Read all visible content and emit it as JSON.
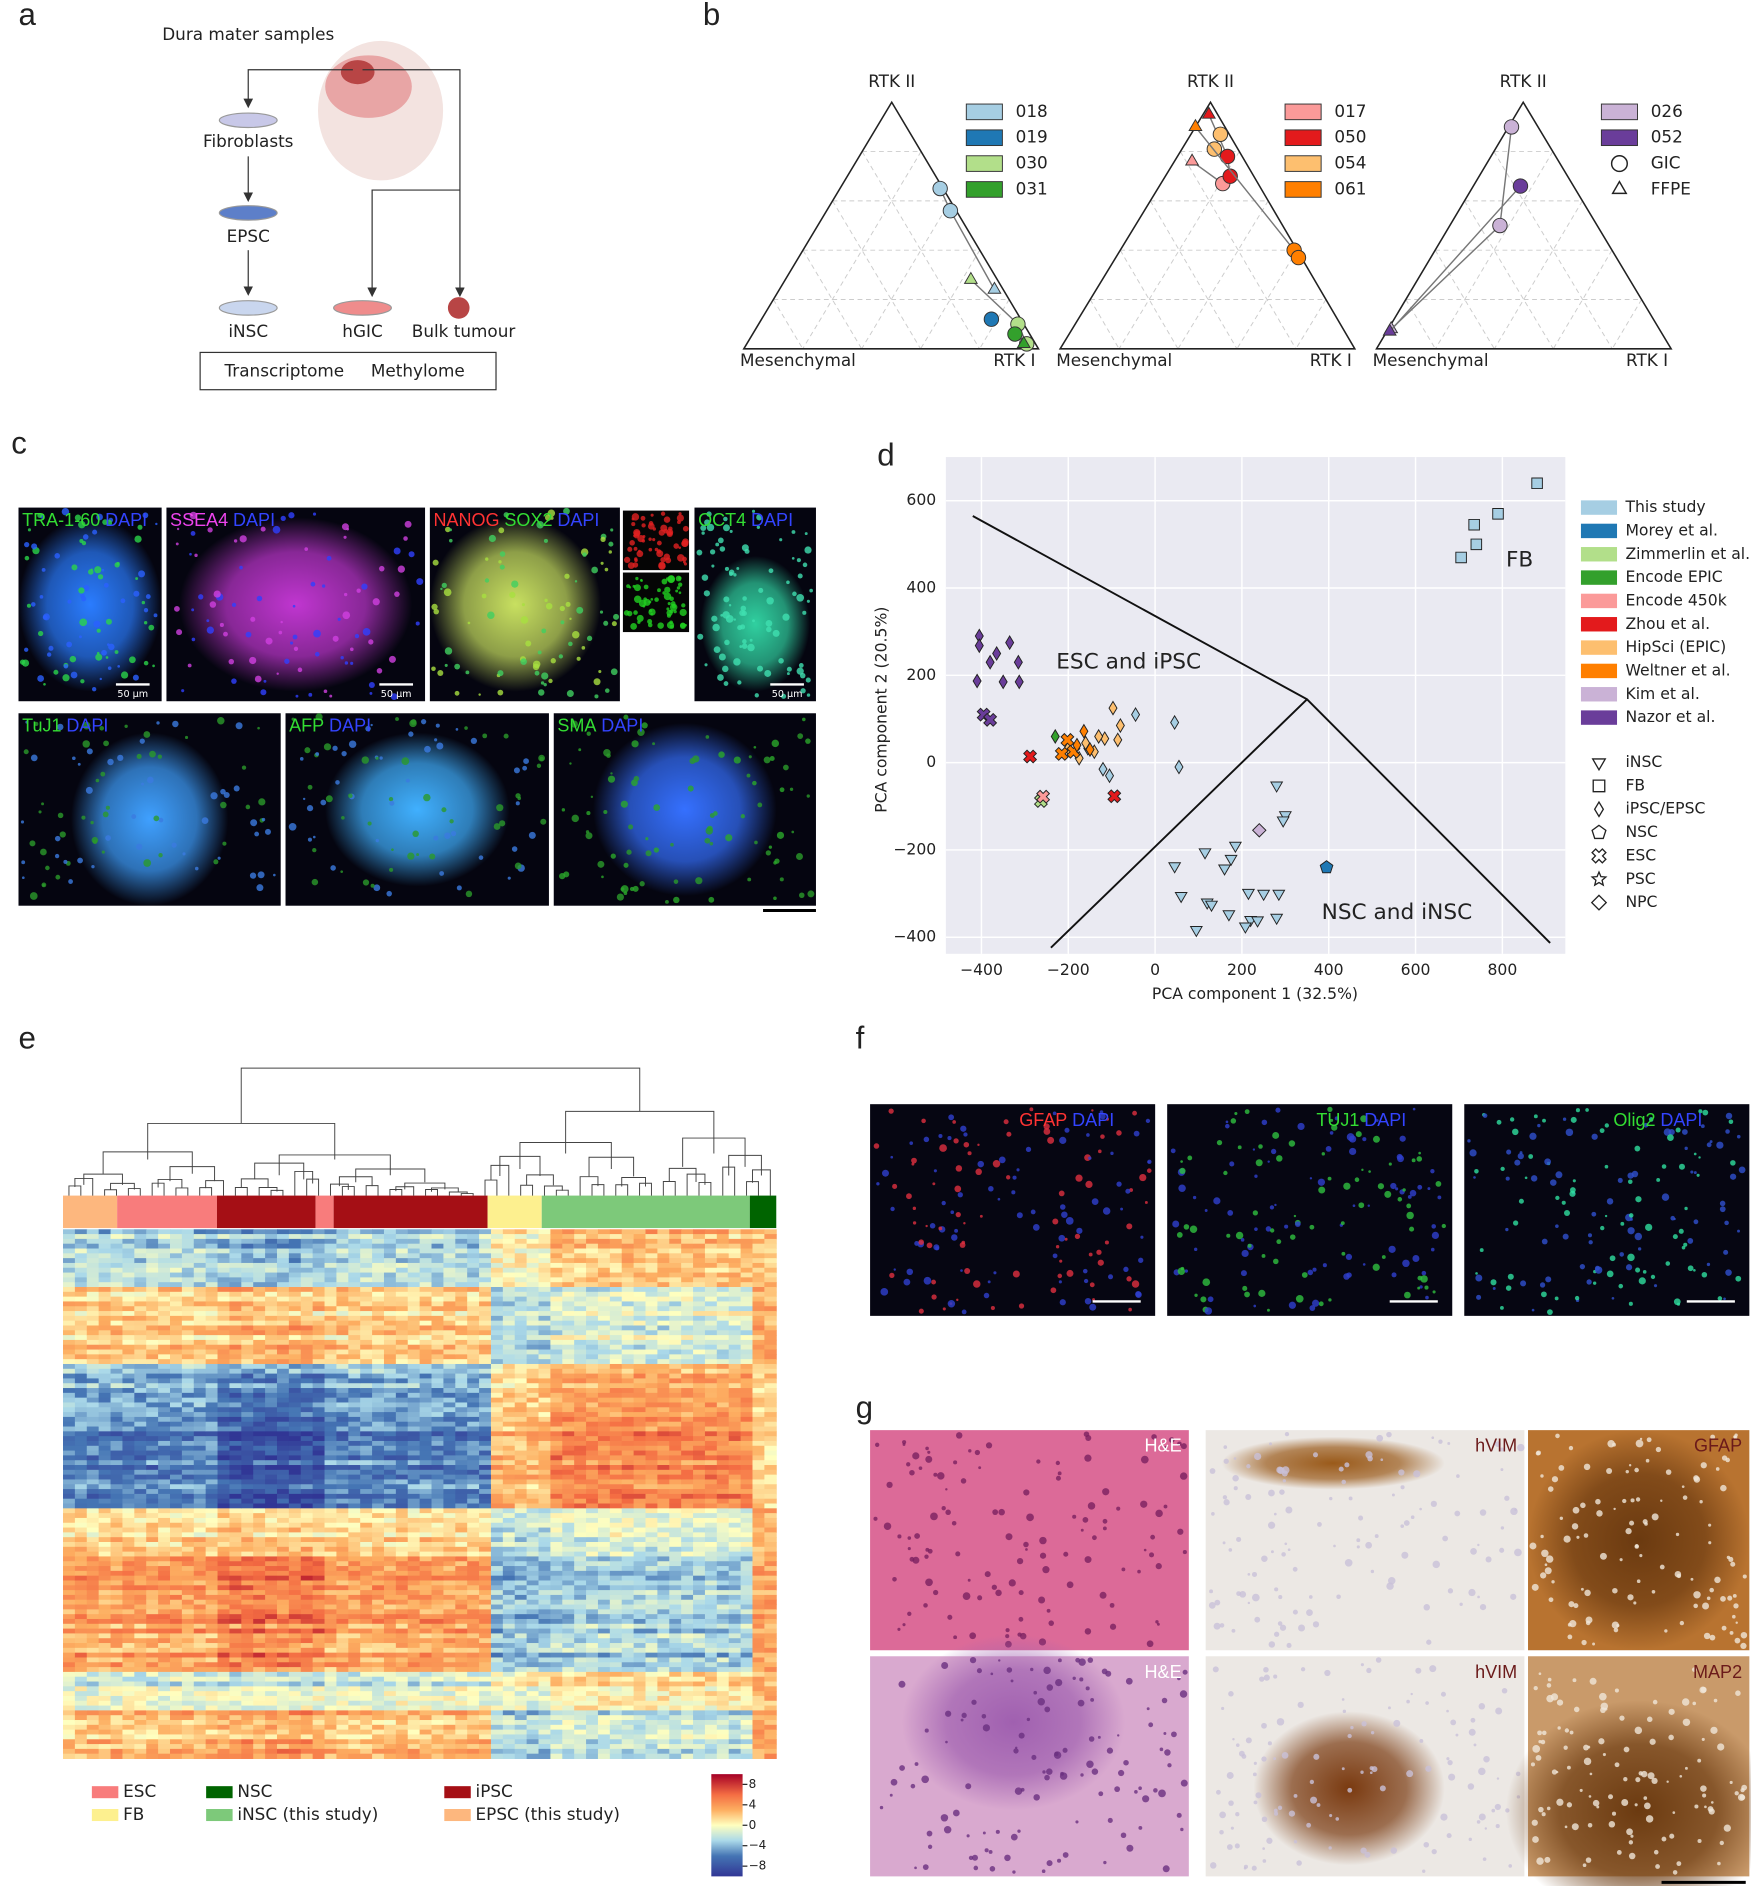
{
  "panel_labels": [
    "a",
    "b",
    "c",
    "d",
    "e",
    "f",
    "g"
  ],
  "schematic": {
    "samples": "Dura mater samples",
    "fibroblasts": "Fibroblasts",
    "epsc": "EPSC",
    "insc": "iNSC",
    "hgic": "hGIC",
    "bulk": "Bulk tumour",
    "assays": [
      "Transcriptome",
      "Methylome"
    ]
  },
  "chart_data": [
    {
      "type": "ternary",
      "corners": [
        "RTK II",
        "Mesenchymal",
        "RTK I"
      ],
      "series": [
        {
          "name": "018",
          "color": "#a6cee3",
          "values": [
            [
              0.65,
              0.01,
              0.34
            ],
            [
              0.56,
              0.02,
              0.42
            ],
            [
              0.24,
              0.03,
              0.73
            ]
          ],
          "markers": [
            "circle",
            "circle",
            "triangle"
          ]
        },
        {
          "name": "019",
          "color": "#1f78b4",
          "values": [
            [
              0.12,
              0.1,
              0.78
            ]
          ],
          "markers": [
            "circle"
          ]
        },
        {
          "name": "030",
          "color": "#b2df8a",
          "values": [
            [
              0.28,
              0.09,
              0.63
            ],
            [
              0.1,
              0.02,
              0.88
            ],
            [
              0.02,
              0.03,
              0.95
            ]
          ],
          "markers": [
            "triangle",
            "circle",
            "circle"
          ]
        },
        {
          "name": "031",
          "color": "#33a02c",
          "values": [
            [
              0.06,
              0.05,
              0.89
            ],
            [
              0.02,
              0.04,
              0.94
            ]
          ],
          "markers": [
            "circle",
            "triangle"
          ]
        }
      ]
    },
    {
      "type": "ternary",
      "corners": [
        "RTK II",
        "Mesenchymal",
        "RTK I"
      ],
      "series": [
        {
          "name": "017",
          "color": "#fb9a99",
          "values": [
            [
              0.76,
              0.18,
              0.06
            ],
            [
              0.67,
              0.12,
              0.21
            ]
          ],
          "markers": [
            "triangle",
            "circle"
          ]
        },
        {
          "name": "050",
          "color": "#e31a1c",
          "values": [
            [
              0.95,
              0.03,
              0.02
            ],
            [
              0.78,
              0.05,
              0.17
            ],
            [
              0.7,
              0.08,
              0.22
            ]
          ],
          "markers": [
            "triangle",
            "circle",
            "circle"
          ]
        },
        {
          "name": "054",
          "color": "#fdbf6f",
          "values": [
            [
              0.87,
              0.03,
              0.1
            ],
            [
              0.81,
              0.08,
              0.11
            ]
          ],
          "markers": [
            "circle",
            "circle"
          ]
        },
        {
          "name": "061",
          "color": "#ff7f00",
          "values": [
            [
              0.9,
              0.1,
              0
            ],
            [
              0.4,
              0.01,
              0.59
            ],
            [
              0.37,
              0.01,
              0.62
            ]
          ],
          "markers": [
            "triangle",
            "circle",
            "circle"
          ]
        }
      ]
    },
    {
      "type": "ternary",
      "corners": [
        "RTK II",
        "Mesenchymal",
        "RTK I"
      ],
      "series": [
        {
          "name": "026",
          "color": "#cab2d6",
          "values": [
            [
              0.9,
              0.09,
              0.01
            ],
            [
              0.5,
              0.33,
              0.17
            ],
            [
              0.08,
              0.91,
              0.01
            ]
          ],
          "markers": [
            "circle",
            "circle",
            "triangle"
          ]
        },
        {
          "name": "052",
          "color": "#6a3d9a",
          "values": [
            [
              0.66,
              0.18,
              0.16
            ],
            [
              0.07,
              0.92,
              0.01
            ]
          ],
          "markers": [
            "circle",
            "triangle"
          ]
        }
      ],
      "marker_legend": [
        {
          "label": "GIC",
          "marker": "circle"
        },
        {
          "label": "FFPE",
          "marker": "triangle"
        }
      ]
    },
    {
      "type": "scatter",
      "xlabel": "PCA component 1 (32.5%)",
      "ylabel": "PCA component 2 (20.5%)",
      "xlim": [
        -482,
        945
      ],
      "ylim": [
        -438,
        700
      ],
      "xticks": [
        {
          "value": -400,
          "label": "−400"
        },
        {
          "value": -200,
          "label": "−200"
        },
        0,
        200,
        400,
        600,
        800
      ],
      "yticks": [
        {
          "value": -400,
          "label": "−400"
        },
        {
          "value": -200,
          "label": "−200"
        },
        0,
        200,
        400,
        600
      ],
      "grid": true,
      "series": [
        {
          "name": "This study",
          "color": "#a6cee3",
          "x": [
            880,
            790,
            735,
            740,
            705,
            280,
            300,
            295,
            45,
            115,
            175,
            185,
            160,
            60,
            120,
            130,
            170,
            215,
            250,
            285,
            220,
            208,
            236,
            95,
            280,
            -45,
            45,
            55,
            -155,
            -120,
            -105
          ],
          "values": [
            640,
            570,
            545,
            500,
            470,
            -52,
            -120,
            -132,
            -237,
            -205,
            -220,
            -190,
            -242,
            -305,
            -320,
            -325,
            -347,
            -298,
            -300,
            -300,
            -360,
            -375,
            -361,
            -383,
            -355,
            110,
            92,
            -10,
            33,
            -15,
            -30
          ],
          "markers": [
            "square",
            "square",
            "square",
            "square",
            "square",
            "triangle-down",
            "triangle-down",
            "triangle-down",
            "triangle-down",
            "triangle-down",
            "triangle-down",
            "triangle-down",
            "triangle-down",
            "triangle-down",
            "triangle-down",
            "triangle-down",
            "triangle-down",
            "triangle-down",
            "triangle-down",
            "triangle-down",
            "triangle-down",
            "triangle-down",
            "triangle-down",
            "triangle-down",
            "triangle-down",
            "thin-diamond",
            "thin-diamond",
            "thin-diamond",
            "thin-diamond",
            "thin-diamond",
            "thin-diamond"
          ]
        },
        {
          "name": "Morey et al.",
          "color": "#1f78b4",
          "x": [
            395
          ],
          "values": [
            -240
          ],
          "markers": [
            "pentagon"
          ]
        },
        {
          "name": "Zimmerlin et al.",
          "color": "#b2df8a",
          "x": [
            -263
          ],
          "values": [
            -88
          ],
          "markers": [
            "cross"
          ]
        },
        {
          "name": "Encode EPIC",
          "color": "#33a02c",
          "x": [
            -230
          ],
          "values": [
            60
          ],
          "markers": [
            "thin-diamond"
          ]
        },
        {
          "name": "Encode 450k",
          "color": "#fb9a99",
          "x": [
            -258
          ],
          "values": [
            -78
          ],
          "markers": [
            "cross"
          ]
        },
        {
          "name": "Zhou et al.",
          "color": "#e31a1c",
          "x": [
            -288,
            -94
          ],
          "values": [
            14,
            -77
          ],
          "markers": [
            "cross",
            "cross"
          ]
        },
        {
          "name": "HipSci (EPIC)",
          "color": "#fdbf6f",
          "x": [
            -97,
            -80,
            -116,
            -86,
            -200,
            -175,
            -140,
            -130,
            -160
          ],
          "values": [
            125,
            85,
            55,
            52,
            33,
            10,
            25,
            60,
            45
          ],
          "markers": [
            "thin-diamond",
            "thin-diamond",
            "thin-diamond",
            "thin-diamond",
            "thin-diamond",
            "thin-diamond",
            "thin-diamond",
            "thin-diamond",
            "thin-diamond"
          ]
        },
        {
          "name": "Weltner et al.",
          "color": "#ff7f00",
          "x": [
            -202,
            -188,
            -164,
            -215,
            -180,
            -150
          ],
          "values": [
            52,
            25,
            72,
            20,
            40,
            30
          ],
          "markers": [
            "cross",
            "cross",
            "thin-diamond",
            "cross",
            "thin-diamond",
            "thin-diamond"
          ]
        },
        {
          "name": "Kim et al.",
          "color": "#cab2d6",
          "x": [
            240
          ],
          "values": [
            -155
          ],
          "markers": [
            "diamond"
          ]
        },
        {
          "name": "Nazor et al.",
          "color": "#6a3d9a",
          "x": [
            -405,
            -405,
            -335,
            -380,
            -365,
            -410,
            -350,
            -315,
            -313,
            -395,
            -380
          ],
          "values": [
            290,
            268,
            275,
            230,
            250,
            187,
            185,
            230,
            185,
            110,
            98
          ],
          "markers": [
            "thin-diamond",
            "thin-diamond",
            "thin-diamond",
            "thin-diamond",
            "thin-diamond",
            "thin-diamond",
            "thin-diamond",
            "thin-diamond",
            "thin-diamond",
            "cross",
            "cross"
          ]
        }
      ],
      "marker_legend": [
        {
          "label": "iNSC",
          "marker": "triangle-down"
        },
        {
          "label": "FB",
          "marker": "square"
        },
        {
          "label": "iPSC/EPSC",
          "marker": "thin-diamond"
        },
        {
          "label": "NSC",
          "marker": "pentagon"
        },
        {
          "label": "ESC",
          "marker": "cross"
        },
        {
          "label": "PSC",
          "marker": "star"
        },
        {
          "label": "NPC",
          "marker": "diamond"
        }
      ],
      "regions": [
        "ESC and iPSC",
        "FB",
        "NSC and iNSC"
      ],
      "boundaries": [
        {
          "x": [
            -420,
            350,
            910
          ],
          "y": [
            565,
            145,
            -413
          ]
        },
        {
          "x": [
            350,
            -240
          ],
          "y": [
            145,
            -424
          ]
        }
      ]
    }
  ],
  "heatmap": {
    "legend": [
      {
        "name": "ESC",
        "color": "#f87c7c"
      },
      {
        "name": "FB",
        "color": "#fdf08f"
      },
      {
        "name": "NSC",
        "color": "#006400"
      },
      {
        "name": "iNSC (this study)",
        "color": "#7dc97a"
      },
      {
        "name": "iPSC",
        "color": "#a50f15"
      },
      {
        "name": "EPSC (this study)",
        "color": "#fdb77e"
      }
    ],
    "colorbar": {
      "range": [
        -10,
        10
      ],
      "ticks": [
        8,
        4,
        0,
        {
          "value": -4,
          "label": "−4"
        },
        {
          "value": -8,
          "label": "−8"
        }
      ]
    }
  },
  "micrographs": {
    "c": [
      {
        "parts": [
          {
            "text": "TRA-1-60",
            "color": "#33dd33"
          },
          {
            "text": "DAPI",
            "color": "#3344ff"
          }
        ],
        "scale_bar": "50 μm"
      },
      {
        "parts": [
          {
            "text": "SSEA4",
            "color": "#ee44ee"
          },
          {
            "text": "DAPI",
            "color": "#3344ff"
          }
        ],
        "scale_bar": "50 μm"
      },
      {
        "parts": [
          {
            "text": "NANOG",
            "color": "#ff3333"
          },
          {
            "text": "SOX2",
            "color": "#33dd33"
          },
          {
            "text": "DAPI",
            "color": "#3344ff"
          }
        ]
      },
      {
        "parts": [
          {
            "text": "OCT4",
            "color": "#33dd33"
          },
          {
            "text": "DAPI",
            "color": "#3344ff"
          }
        ],
        "scale_bar": "50 μm"
      },
      {
        "parts": [
          {
            "text": "TuJ1",
            "color": "#33dd33"
          },
          {
            "text": "DAPI",
            "color": "#3344ff"
          }
        ]
      },
      {
        "parts": [
          {
            "text": "AFP",
            "color": "#33dd33"
          },
          {
            "text": "DAPI",
            "color": "#3344ff"
          }
        ]
      },
      {
        "parts": [
          {
            "text": "SMA",
            "color": "#33dd33"
          },
          {
            "text": "DAPI",
            "color": "#3344ff"
          }
        ]
      }
    ],
    "f": [
      {
        "parts": [
          {
            "text": "GFAP",
            "color": "#ff3333"
          },
          {
            "text": "DAPI",
            "color": "#3344ff"
          }
        ]
      },
      {
        "parts": [
          {
            "text": "TUJ1",
            "color": "#33dd33"
          },
          {
            "text": "DAPI",
            "color": "#3344ff"
          }
        ]
      },
      {
        "parts": [
          {
            "text": "Olig2",
            "color": "#33dd33"
          },
          {
            "text": "DAPI",
            "color": "#3344ff"
          }
        ]
      }
    ],
    "g": [
      {
        "label": "H&E",
        "color": "#ffffff"
      },
      {
        "label": "hVIM",
        "color": "#6b1a1a"
      },
      {
        "label": "GFAP",
        "color": "#6b1a1a"
      },
      {
        "label": "H&E",
        "color": "#ffffff"
      },
      {
        "label": "hVIM",
        "color": "#6b1a1a"
      },
      {
        "label": "MAP2",
        "color": "#6b1a1a"
      }
    ]
  }
}
